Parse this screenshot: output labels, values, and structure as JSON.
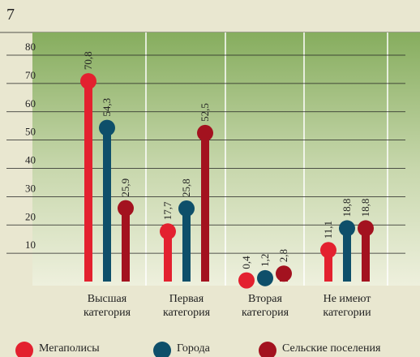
{
  "chart_data": {
    "type": "lollipop",
    "title": "7",
    "categories": [
      "Высшая категория",
      "Первая категория",
      "Вторая категория",
      "Не имеют категории"
    ],
    "series": [
      {
        "name": "Мегаполисы",
        "color": "#e3212f",
        "values": [
          70.8,
          17.7,
          0.4,
          11.1
        ],
        "value_labels": [
          "70,8",
          "17,7",
          "0,4",
          "11,1"
        ]
      },
      {
        "name": "Города",
        "color": "#0e4f6a",
        "values": [
          54.3,
          25.8,
          1.2,
          18.8
        ],
        "value_labels": [
          "54,3",
          "25,8",
          "1,2",
          "18,8"
        ]
      },
      {
        "name": "Сельские поселения",
        "color": "#a3121f",
        "values": [
          25.9,
          52.5,
          2.8,
          18.8
        ],
        "value_labels": [
          "25,9",
          "52,5",
          "2,8",
          "18,8"
        ]
      }
    ],
    "ylim": [
      0,
      80
    ],
    "yticks": [
      10,
      20,
      30,
      40,
      50,
      60,
      70,
      80
    ],
    "grid": true,
    "legend": "bottom"
  }
}
